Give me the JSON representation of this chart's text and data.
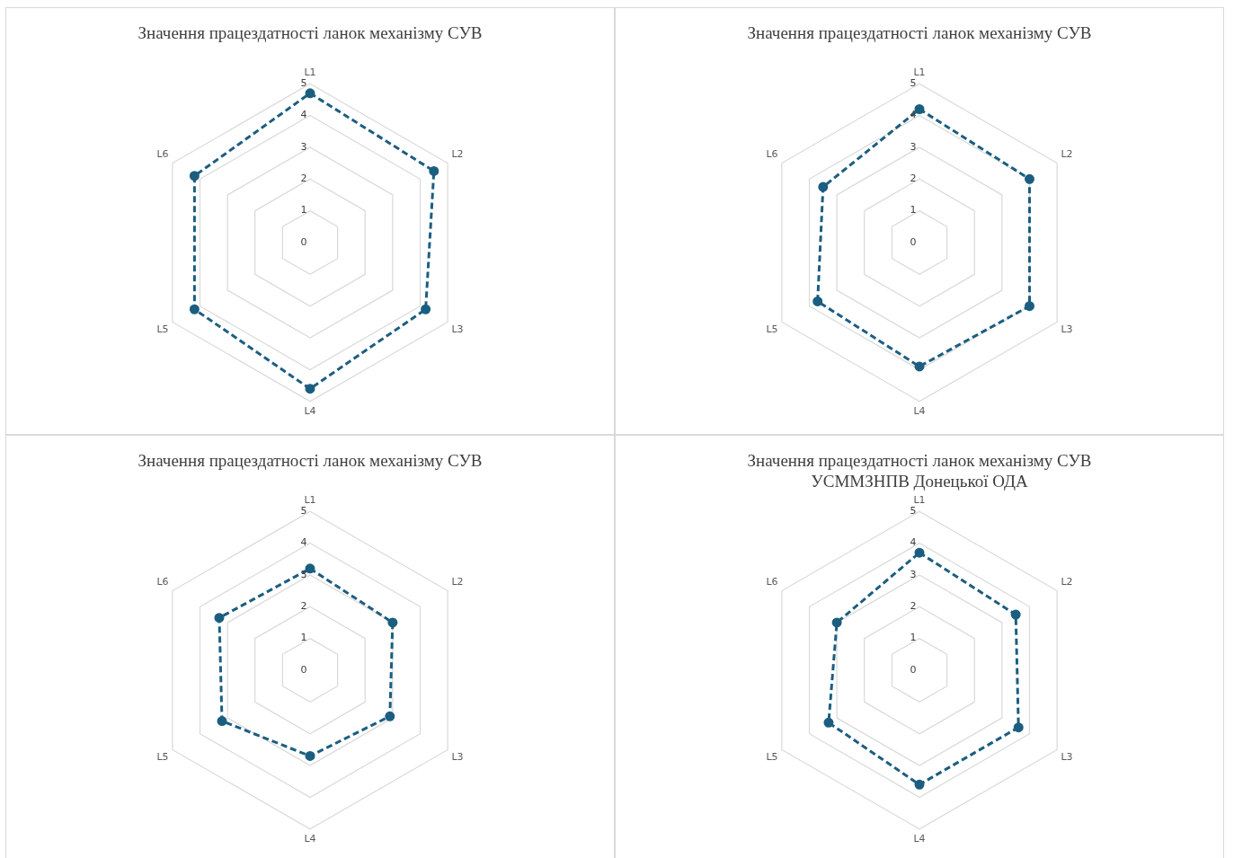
{
  "chart_data": [
    {
      "type": "radar",
      "title": "Значення працездатності ланок механізму СУВ",
      "categories": [
        "L1",
        "L2",
        "L3",
        "L4",
        "L5",
        "L6"
      ],
      "ylim": [
        0,
        5
      ],
      "yticks": [
        0,
        1,
        2,
        3,
        4,
        5
      ],
      "grid": true,
      "marker": "circle",
      "line_style": "dashed",
      "series": [
        {
          "color": "#1b5e80",
          "values": [
            4.7,
            4.5,
            4.2,
            4.6,
            4.2,
            4.2
          ]
        }
      ]
    },
    {
      "type": "radar",
      "title": "Значення працездатності ланок механізму СУВ",
      "categories": [
        "L1",
        "L2",
        "L3",
        "L4",
        "L5",
        "L6"
      ],
      "ylim": [
        0,
        5
      ],
      "yticks": [
        0,
        1,
        2,
        3,
        4,
        5
      ],
      "grid": true,
      "marker": "circle",
      "line_style": "dashed",
      "series": [
        {
          "color": "#1b5e80",
          "values": [
            4.2,
            4.0,
            4.0,
            3.9,
            3.7,
            3.5
          ]
        }
      ]
    },
    {
      "type": "radar",
      "title": "Значення працездатності ланок механізму СУВ",
      "categories": [
        "L1",
        "L2",
        "L3",
        "L4",
        "L5",
        "L6"
      ],
      "ylim": [
        0,
        5
      ],
      "yticks": [
        0,
        1,
        2,
        3,
        4,
        5
      ],
      "grid": true,
      "marker": "circle",
      "line_style": "dashed",
      "series": [
        {
          "color": "#1b5e80",
          "values": [
            3.2,
            3.0,
            2.9,
            2.7,
            3.2,
            3.3
          ]
        }
      ]
    },
    {
      "type": "radar",
      "title": "Значення працездатності ланок механізму СУВ УСММЗНПВ Донецької ОДА",
      "categories": [
        "L1",
        "L2",
        "L3",
        "L4",
        "L5",
        "L6"
      ],
      "ylim": [
        0,
        5
      ],
      "yticks": [
        0,
        1,
        2,
        3,
        4,
        5
      ],
      "grid": true,
      "marker": "circle",
      "line_style": "dashed",
      "series": [
        {
          "color": "#1b5e80",
          "values": [
            3.7,
            3.5,
            3.6,
            3.6,
            3.3,
            3.0
          ]
        }
      ]
    }
  ]
}
